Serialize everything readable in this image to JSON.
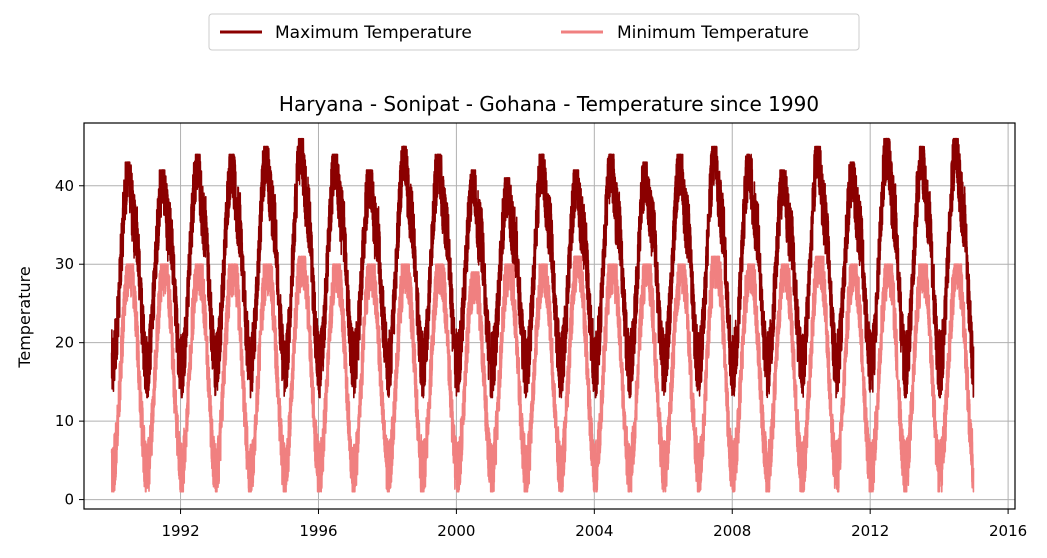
{
  "chart_data": {
    "type": "line",
    "title": "Haryana - Sonipat - Gohana - Temperature since 1990",
    "xlabel": "",
    "ylabel": "Temperature",
    "x_range": [
      "1990-01-01",
      "2014-12-31"
    ],
    "xlim": [
      1989.2,
      2016.2
    ],
    "ylim": [
      -1.2,
      48
    ],
    "x_ticks": [
      "1992",
      "1996",
      "2000",
      "2004",
      "2008",
      "2012",
      "2016"
    ],
    "y_ticks": [
      "0",
      "10",
      "20",
      "30",
      "40"
    ],
    "grid": true,
    "legend_position": "top-center",
    "series": [
      {
        "name": "Maximum Temperature",
        "color": "#8b0000",
        "annual_peak": [
          43,
          42,
          44,
          44,
          45,
          46,
          44,
          42,
          45,
          44,
          42,
          41,
          44,
          42,
          44,
          43,
          44,
          45,
          44,
          42,
          45,
          43,
          46,
          45,
          46
        ],
        "annual_low": 13,
        "typical_range": [
          14,
          46
        ]
      },
      {
        "name": "Minimum Temperature",
        "color": "#f08080",
        "annual_peak": [
          30,
          30,
          30,
          30,
          30,
          31,
          30,
          30,
          30,
          30,
          29,
          30,
          30,
          31,
          30,
          30,
          30,
          31,
          30,
          30,
          31,
          30,
          30,
          30,
          30
        ],
        "annual_low": 1.5,
        "typical_range": [
          2,
          31
        ]
      }
    ]
  }
}
